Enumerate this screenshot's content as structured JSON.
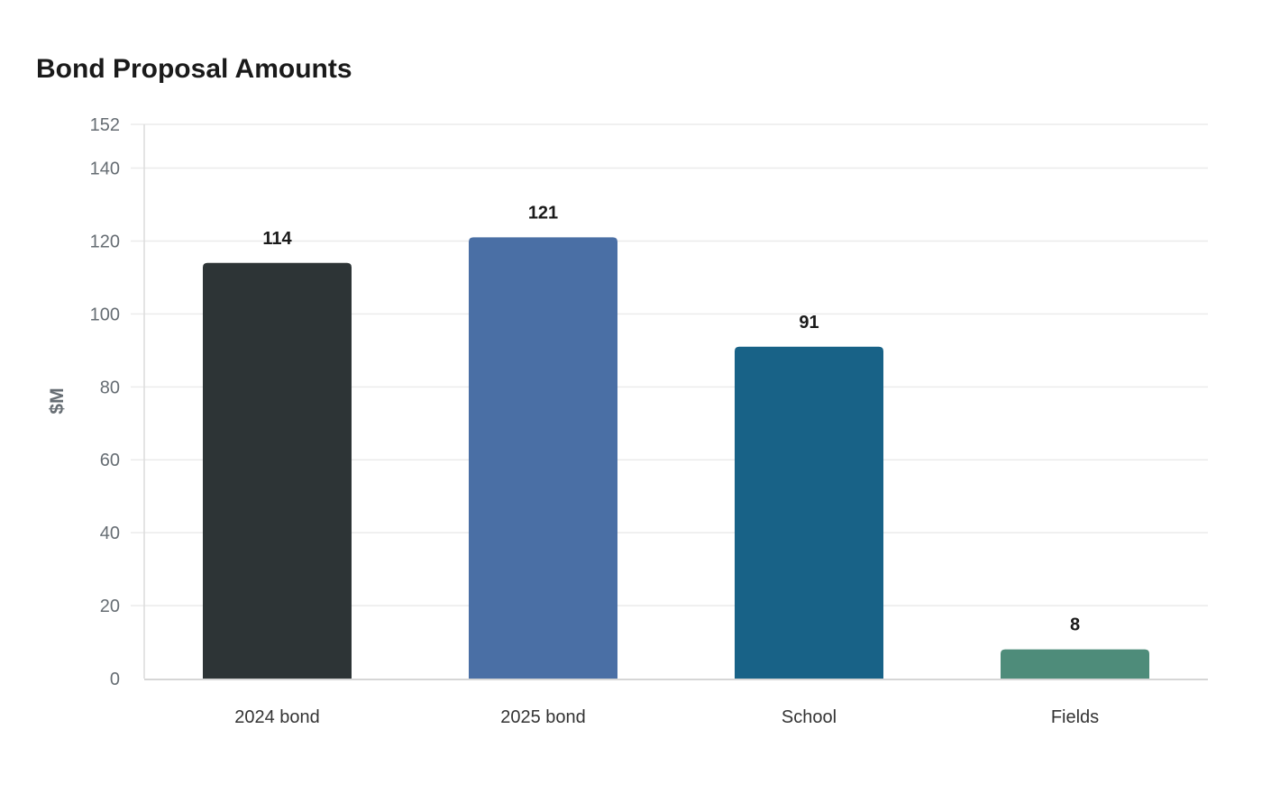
{
  "chart_data": {
    "type": "bar",
    "title": "Bond Proposal Amounts",
    "xlabel": "",
    "ylabel": "$M",
    "categories": [
      "2024 bond",
      "2025 bond",
      "School",
      "Fields"
    ],
    "values": [
      114,
      121,
      91,
      8
    ],
    "data_labels": [
      "114",
      "121",
      "91",
      "8"
    ],
    "colors": [
      "#2d3436",
      "#4a6fa5",
      "#186287",
      "#4e8c7a"
    ],
    "ylim": [
      0,
      152
    ],
    "yticks": [
      0,
      20,
      40,
      60,
      80,
      100,
      120,
      140,
      152
    ],
    "grid": true,
    "legend": "none"
  }
}
